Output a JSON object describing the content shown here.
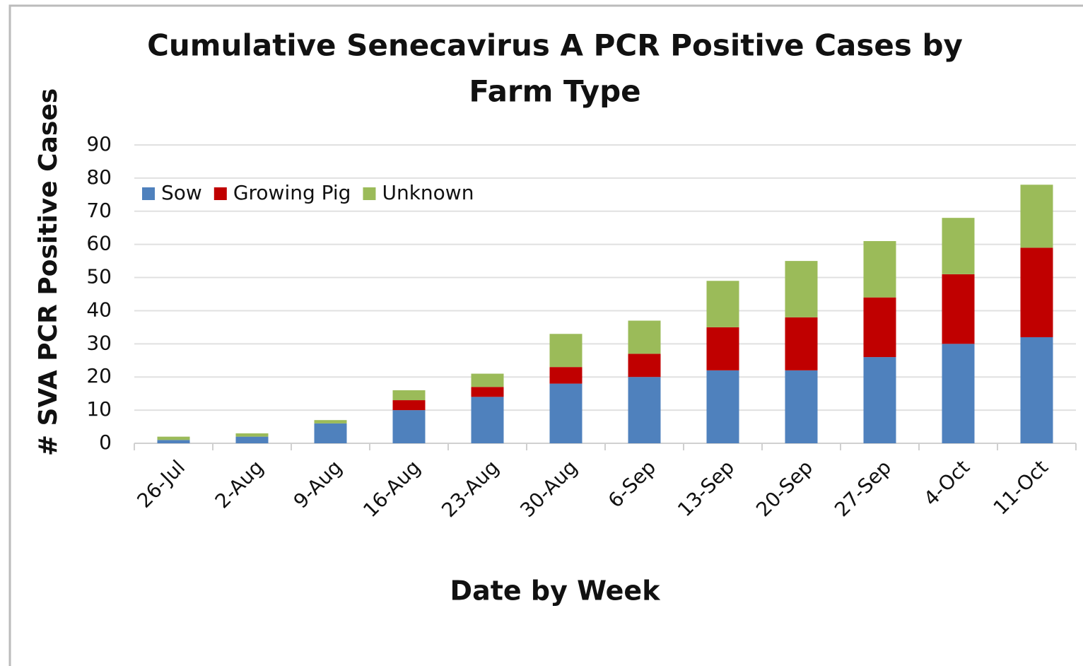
{
  "chart_data": {
    "type": "stacked_bar",
    "title": [
      "Cumulative Senecavirus A PCR Positive Cases by",
      "Farm Type"
    ],
    "x_label": "Date by Week",
    "y_label": "# SVA PCR Positive Cases",
    "categories": [
      "26-Jul",
      "2-Aug",
      "9-Aug",
      "16-Aug",
      "23-Aug",
      "30-Aug",
      "6-Sep",
      "13-Sep",
      "20-Sep",
      "27-Sep",
      "4-Oct",
      "11-Oct"
    ],
    "series": [
      {
        "name": "Sow",
        "color": "#4f81bd",
        "values": [
          1,
          2,
          6,
          10,
          14,
          18,
          20,
          22,
          22,
          26,
          30,
          32
        ]
      },
      {
        "name": "Growing Pig",
        "color": "#c00000",
        "values": [
          0,
          0,
          0,
          3,
          3,
          5,
          7,
          13,
          16,
          18,
          21,
          27
        ]
      },
      {
        "name": "Unknown",
        "color": "#9bbb59",
        "values": [
          1,
          1,
          1,
          3,
          4,
          10,
          10,
          14,
          17,
          17,
          17,
          19
        ]
      }
    ],
    "ylim": [
      0,
      90
    ],
    "yticks": [
      0,
      10,
      20,
      30,
      40,
      50,
      60,
      70,
      80,
      90
    ],
    "grid": true,
    "legend": "top-left"
  }
}
